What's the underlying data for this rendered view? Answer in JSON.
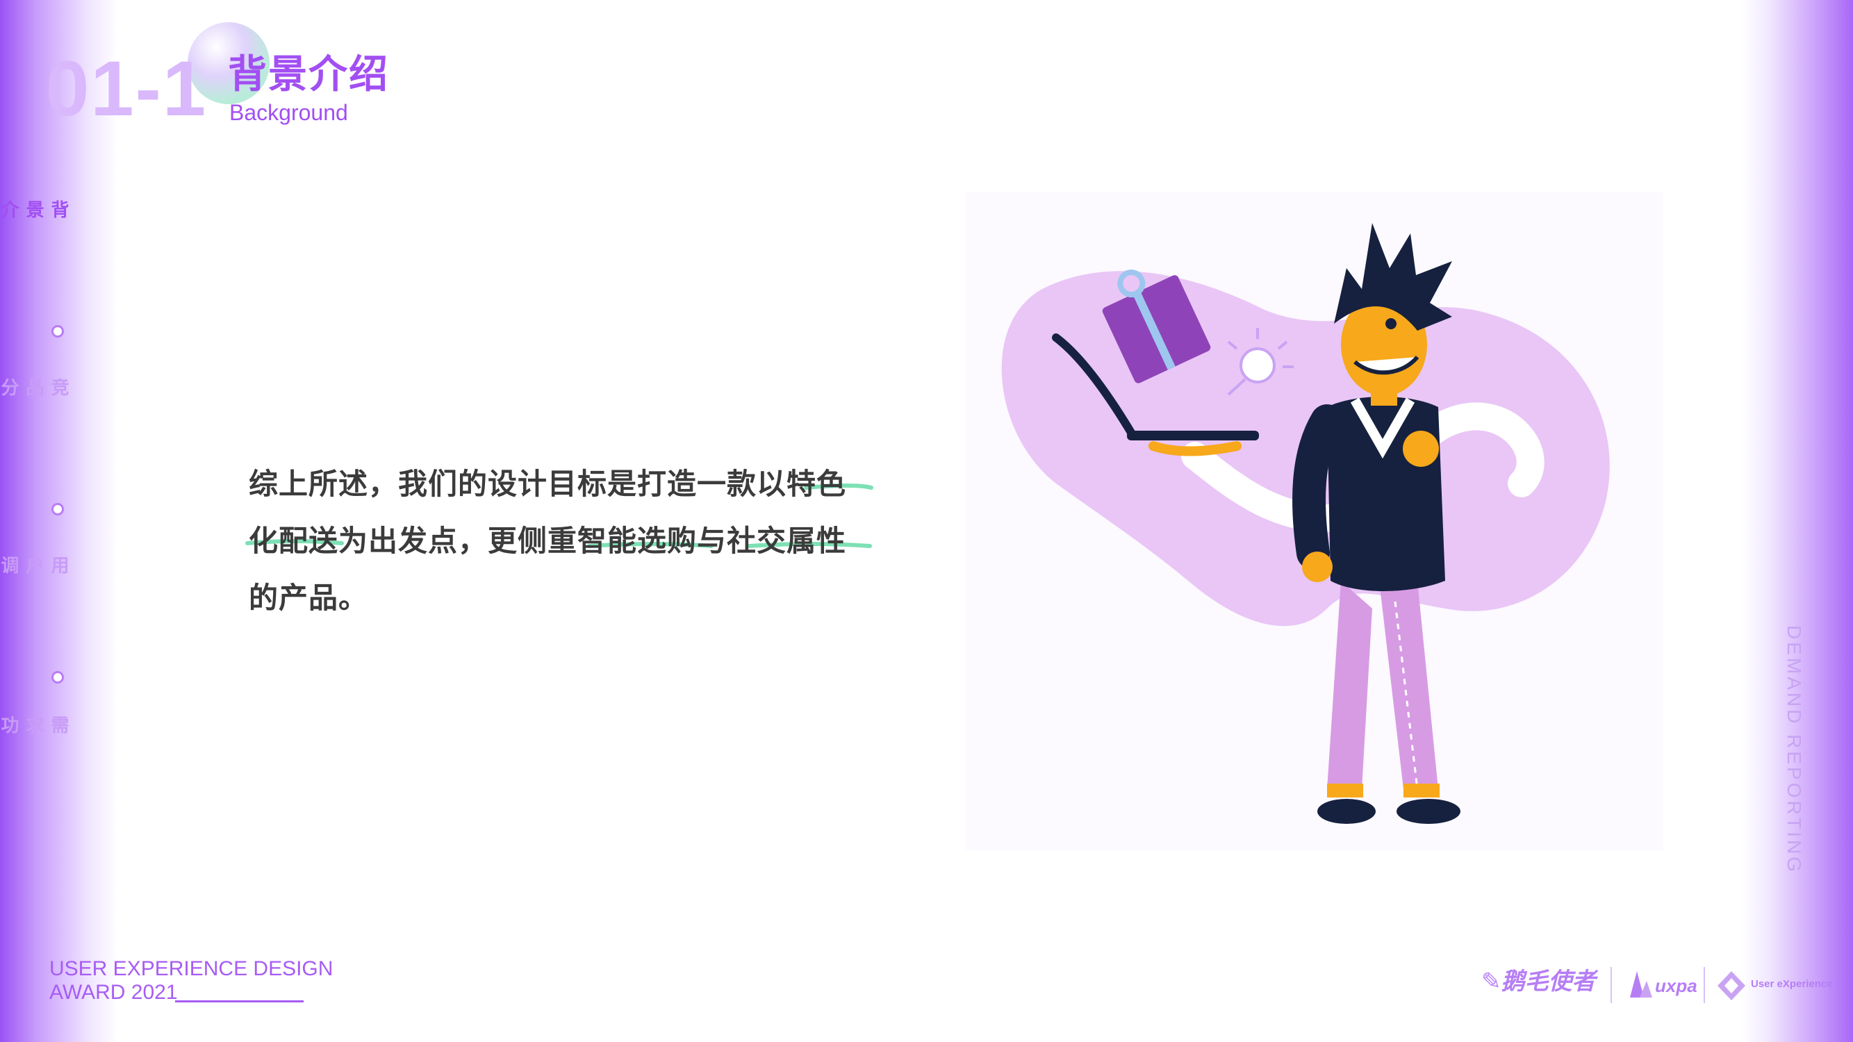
{
  "header": {
    "section_number": "01-1",
    "title": "背景介绍",
    "subtitle": "Background"
  },
  "sidenav": {
    "items": [
      {
        "label": "背景介绍",
        "active": true
      },
      {
        "label": "竞品分析",
        "active": false
      },
      {
        "label": "用户调研",
        "active": false
      },
      {
        "label": "需求功能提炼",
        "active": false
      }
    ]
  },
  "content": {
    "line1": "综上所述，我们的设计目标是打造一款以特色",
    "line2": "化配送为出发点，更侧重智能选购与社交属性",
    "line3": "的产品。"
  },
  "side_label": "DEMAND  REPORTING",
  "footer": {
    "line1": "USER EXPERIENCE DESIGN",
    "line2": "AWARD 2021",
    "logo_main": "鹅毛使者",
    "logo_uxpa": "uxpa",
    "logo_ux": "User eXperience"
  },
  "colors": {
    "accent": "#a24ff2",
    "accent_light": "#d9b8fb",
    "highlight_green": "#7de0b4",
    "body_text": "#3b3b3b"
  }
}
